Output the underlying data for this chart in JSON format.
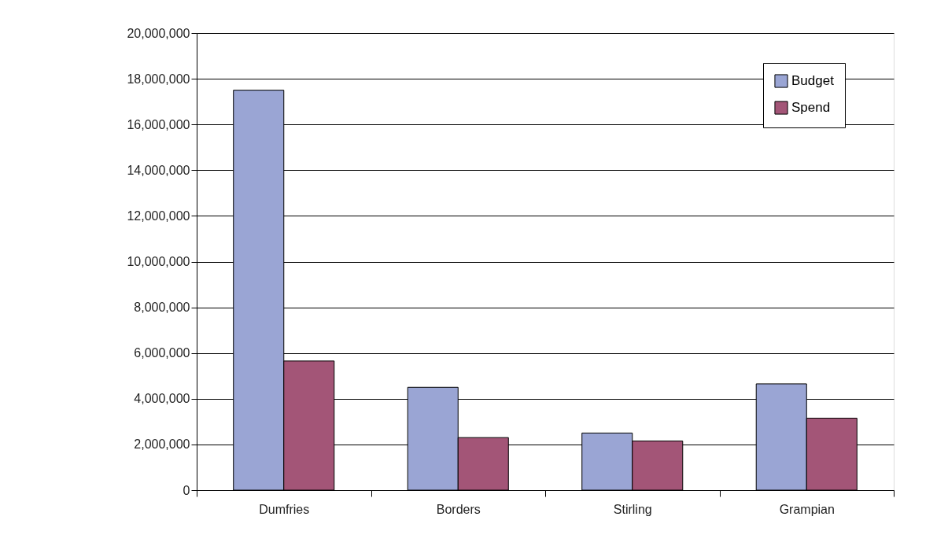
{
  "chart_data": {
    "type": "bar",
    "categories": [
      "Dumfries",
      "Borders",
      "Stirling",
      "Grampian"
    ],
    "series": [
      {
        "name": "Budget",
        "color": "#9aa5d4",
        "values": [
          17500000,
          4500000,
          2500000,
          4650000
        ]
      },
      {
        "name": "Spend",
        "color": "#a35577",
        "values": [
          5650000,
          2300000,
          2150000,
          3150000
        ]
      }
    ],
    "ylim": [
      0,
      20000000
    ],
    "yticks": [
      0,
      {
        "value": 2000000,
        "label": "2,000,000"
      },
      {
        "value": 4000000,
        "label": "4,000,000"
      },
      {
        "value": 6000000,
        "label": "6,000,000"
      },
      {
        "value": 8000000,
        "label": "8,000,000"
      },
      {
        "value": 10000000,
        "label": "10,000,000"
      },
      {
        "value": 12000000,
        "label": "12,000,000"
      },
      {
        "value": 14000000,
        "label": "14,000,000"
      },
      {
        "value": 16000000,
        "label": "16,000,000"
      },
      {
        "value": 18000000,
        "label": "18,000,000"
      },
      {
        "value": 20000000,
        "label": "20,000,000"
      }
    ],
    "grid": "y",
    "legend": "top right"
  }
}
